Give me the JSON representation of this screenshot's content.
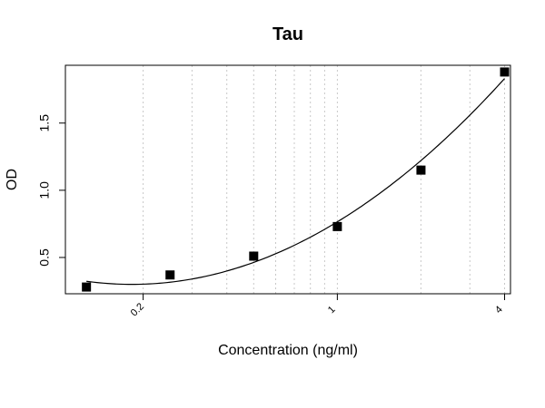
{
  "chart_data": {
    "type": "scatter",
    "title": "Tau",
    "xlabel": "Concentration (ng/ml)",
    "ylabel": "OD",
    "x_scale": "log",
    "x_ticks": [
      0.2,
      1,
      4
    ],
    "x_tick_labels": [
      "0.2",
      "1",
      "4"
    ],
    "y_ticks": [
      0.5,
      1.0,
      1.5
    ],
    "y_tick_labels": [
      "0.5",
      "1.0",
      "1.5"
    ],
    "xlim": [
      0.105,
      4.2
    ],
    "ylim": [
      0.23,
      1.93
    ],
    "grid": "vertical dotted lines at log minor ticks",
    "fit_curve": true,
    "series": [
      {
        "x": [
          0.125,
          0.25,
          0.5,
          1,
          2,
          4
        ],
        "y": [
          0.28,
          0.37,
          0.51,
          0.73,
          1.15,
          1.88
        ]
      }
    ]
  }
}
